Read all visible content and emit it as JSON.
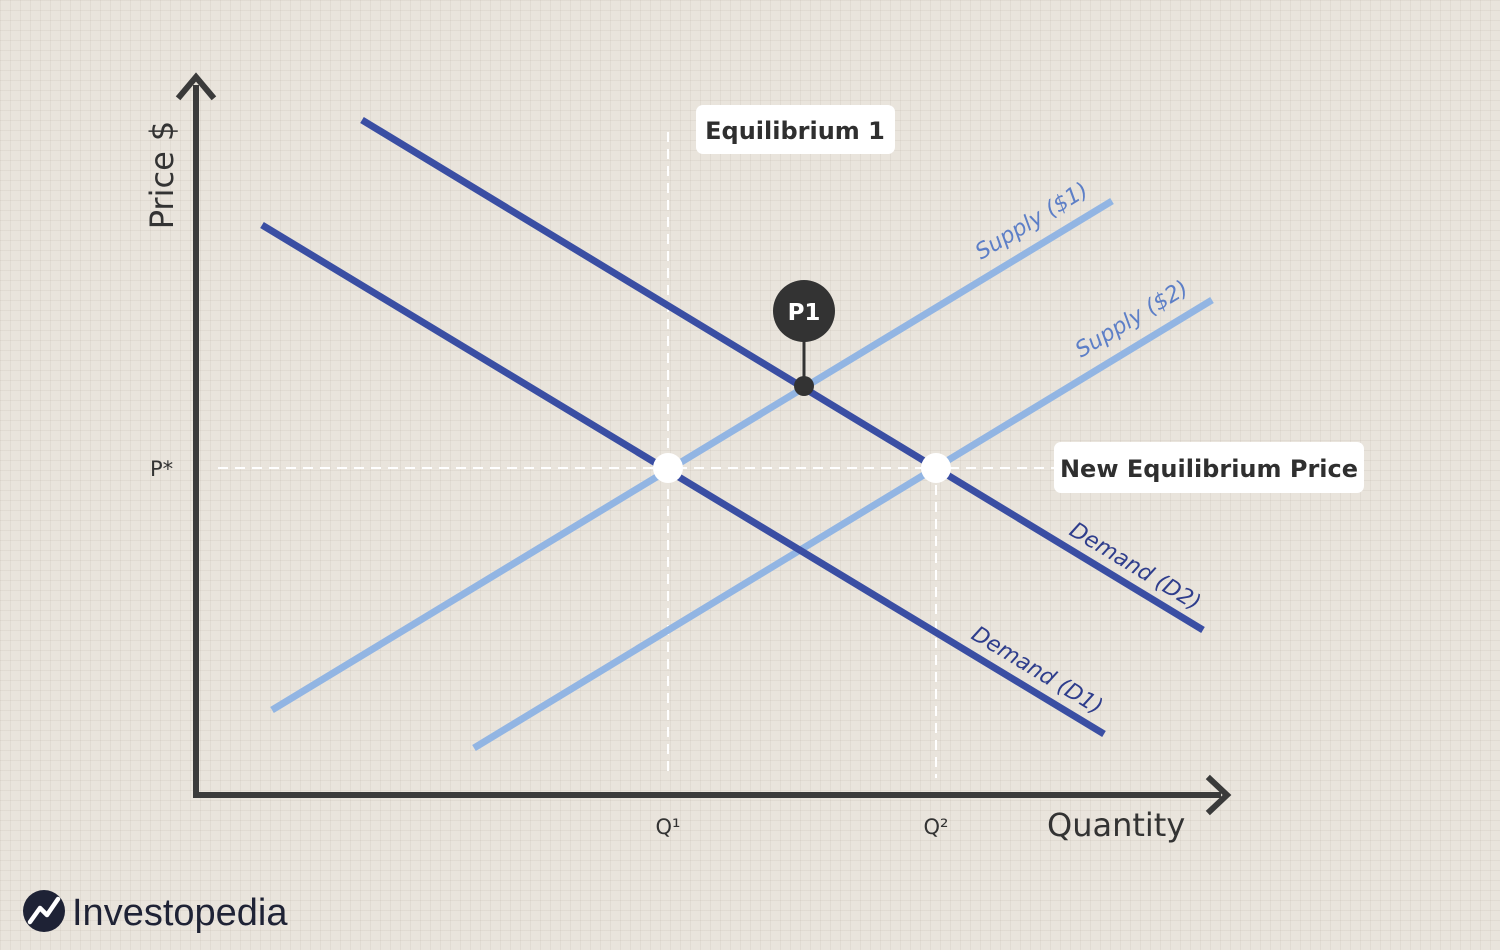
{
  "axes": {
    "y_title": "Price $",
    "x_title": "Quantity",
    "y_tick": "P*",
    "x_ticks": [
      "Q¹",
      "Q²"
    ]
  },
  "curves": {
    "supply_1": "Supply ($1)",
    "supply_2": "Supply ($2)",
    "demand_1": "Demand (D1)",
    "demand_2": "Demand (D2)"
  },
  "callouts": {
    "equilibrium_1": "Equilibrium 1",
    "new_equilibrium_price": "New Equilibrium Price",
    "p1_marker": "P1"
  },
  "colors": {
    "demand": "#3a4ea3",
    "supply": "#92b5e3",
    "axis": "#3a3a3a",
    "marker": "#333333",
    "background": "#e9e4dc"
  },
  "brand": {
    "name": "Investopedia"
  }
}
